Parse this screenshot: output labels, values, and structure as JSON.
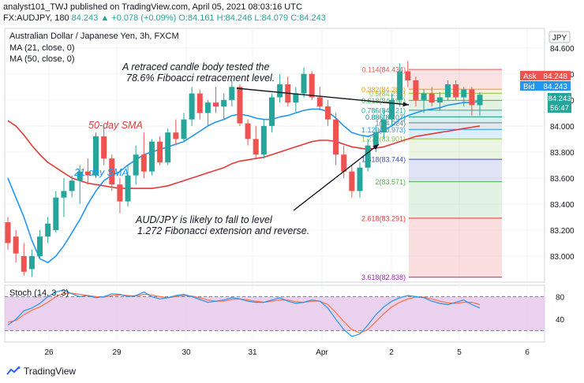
{
  "header": {
    "publisher_line": "analyst101_TWJ published on TradingView.com, April 05, 2021 08:03:16 UTC",
    "symbol_line": "FX:AUDJPY, 180",
    "last": "84.243",
    "change": "▲ +0.078 (+0.09%)",
    "open": "O:84.161",
    "high": "H:84.246",
    "low": "L:84.079",
    "close": "C:84.243"
  },
  "legend": {
    "pair_title": "Australian Dollar / Japanese Yen, 3h, FXCM",
    "ma21": "MA (21, close, 0)",
    "ma50": "MA (50, close, 0)",
    "stoch": "Stoch (14, 3, 3)"
  },
  "currency_label": "JPY",
  "annotations": {
    "top_line1": "A retraced candle body tested the",
    "top_line2": "78.6% Fiboacci retracement level.",
    "bottom_line1": "AUD/JPY is likely to fall to level",
    "bottom_line2": "1.272 Fibonacci extension and reverse.",
    "sma50": "50-day SMA",
    "sma21": "21-day SMA"
  },
  "price_tags": {
    "ask_label": "Ask",
    "ask_value": "84.248",
    "bid_label": "Bid",
    "bid_value": "84.243",
    "last_value": "84.243",
    "countdown": "56:47"
  },
  "brand": "TradingView",
  "colors": {
    "up": "#26a69a",
    "down": "#ef5350",
    "ma21": "#2196f3",
    "ma50": "#e53935",
    "stoch_k": "#2196f3",
    "stoch_d": "#ff7043",
    "stoch_band": "#e1bee7",
    "ask": "#ef5350",
    "bid": "#2196f3"
  },
  "chart_data": {
    "type": "candlestick",
    "y_ticks": [
      84.6,
      84.4,
      84.2,
      84.0,
      83.8,
      83.6,
      83.4,
      83.2,
      83.0
    ],
    "y_tick_labels": [
      "84.600",
      "84.400",
      "84.200",
      "84.000",
      "83.800",
      "83.600",
      "83.400",
      "83.200",
      "83.000"
    ],
    "ylim": [
      82.8,
      84.75
    ],
    "x_labels": [
      "26",
      "29",
      "30",
      "31",
      "Apr",
      "2",
      "5",
      "6"
    ],
    "candles": [
      [
        83.26,
        83.3,
        83.05,
        83.1
      ],
      [
        83.15,
        83.2,
        82.95,
        83.02
      ],
      [
        83.0,
        83.1,
        82.85,
        82.88
      ],
      [
        82.9,
        83.05,
        82.84,
        83.0
      ],
      [
        83.0,
        83.2,
        82.98,
        83.15
      ],
      [
        83.15,
        83.3,
        83.1,
        83.25
      ],
      [
        83.2,
        83.5,
        83.18,
        83.45
      ],
      [
        83.45,
        83.6,
        83.3,
        83.5
      ],
      [
        83.5,
        83.62,
        83.45,
        83.58
      ],
      [
        83.58,
        83.7,
        83.4,
        83.65
      ],
      [
        83.65,
        83.75,
        83.55,
        83.62
      ],
      [
        83.62,
        83.95,
        83.6,
        83.92
      ],
      [
        83.92,
        84.0,
        83.7,
        83.75
      ],
      [
        83.75,
        83.78,
        83.5,
        83.55
      ],
      [
        83.55,
        83.6,
        83.33,
        83.42
      ],
      [
        83.42,
        83.7,
        83.38,
        83.62
      ],
      [
        83.62,
        83.85,
        83.55,
        83.78
      ],
      [
        83.78,
        83.95,
        83.6,
        83.65
      ],
      [
        83.65,
        83.9,
        83.62,
        83.88
      ],
      [
        83.88,
        83.92,
        83.7,
        83.72
      ],
      [
        83.72,
        83.98,
        83.7,
        83.95
      ],
      [
        83.95,
        84.05,
        83.85,
        83.9
      ],
      [
        83.9,
        84.1,
        83.88,
        84.05
      ],
      [
        84.05,
        84.3,
        84.0,
        84.25
      ],
      [
        84.25,
        84.28,
        84.05,
        84.1
      ],
      [
        84.1,
        84.2,
        84.0,
        84.18
      ],
      [
        84.18,
        84.3,
        84.1,
        84.15
      ],
      [
        84.15,
        84.25,
        84.05,
        84.2
      ],
      [
        84.2,
        84.35,
        84.15,
        84.3
      ],
      [
        84.3,
        84.32,
        84.0,
        84.02
      ],
      [
        84.02,
        84.05,
        83.85,
        83.9
      ],
      [
        83.9,
        84.0,
        83.75,
        83.78
      ],
      [
        83.78,
        84.05,
        83.75,
        84.0
      ],
      [
        84.0,
        84.25,
        83.95,
        84.22
      ],
      [
        84.22,
        84.4,
        84.18,
        84.32
      ],
      [
        84.32,
        84.38,
        84.15,
        84.18
      ],
      [
        84.18,
        84.3,
        84.1,
        84.25
      ],
      [
        84.25,
        84.45,
        84.22,
        84.4
      ],
      [
        84.4,
        84.42,
        84.2,
        84.22
      ],
      [
        84.22,
        84.3,
        84.12,
        84.15
      ],
      [
        84.15,
        84.2,
        84.0,
        84.05
      ],
      [
        84.05,
        84.1,
        83.7,
        83.78
      ],
      [
        83.78,
        83.85,
        83.6,
        83.65
      ],
      [
        83.65,
        83.7,
        83.45,
        83.5
      ],
      [
        83.5,
        83.72,
        83.45,
        83.68
      ],
      [
        83.68,
        83.9,
        83.65,
        83.85
      ],
      [
        83.85,
        84.0,
        83.8,
        83.95
      ],
      [
        83.95,
        84.12,
        83.9,
        84.05
      ],
      [
        84.05,
        84.25,
        84.0,
        84.2
      ],
      [
        84.2,
        84.48,
        84.15,
        84.42
      ],
      [
        84.42,
        84.5,
        84.3,
        84.35
      ],
      [
        84.35,
        84.38,
        84.15,
        84.2
      ],
      [
        84.2,
        84.28,
        84.1,
        84.25
      ],
      [
        84.25,
        84.3,
        84.15,
        84.18
      ],
      [
        84.18,
        84.26,
        84.12,
        84.22
      ],
      [
        84.22,
        84.35,
        84.2,
        84.32
      ],
      [
        84.32,
        84.35,
        84.2,
        84.22
      ],
      [
        84.22,
        84.3,
        84.15,
        84.28
      ],
      [
        84.28,
        84.3,
        84.08,
        84.16
      ],
      [
        84.16,
        84.26,
        84.08,
        84.24
      ]
    ],
    "ma21": [
      83.6,
      83.45,
      83.3,
      83.12,
      82.98,
      82.95,
      83.0,
      83.08,
      83.18,
      83.28,
      83.4,
      83.5,
      83.58,
      83.62,
      83.65,
      83.7,
      83.74,
      83.78,
      83.8,
      83.82,
      83.84,
      83.86,
      83.88,
      83.92,
      83.96,
      84.0,
      84.03,
      84.05,
      84.08,
      84.09,
      84.08,
      84.06,
      84.05,
      84.05,
      84.07,
      84.08,
      84.1,
      84.12,
      84.13,
      84.13,
      84.11,
      84.06,
      84.0,
      83.95,
      83.93,
      83.92,
      83.94,
      83.97,
      84.0,
      84.05,
      84.08,
      84.1,
      84.12,
      84.13,
      84.14,
      84.16,
      84.17,
      84.18,
      84.18,
      84.19
    ],
    "ma50": [
      84.04,
      84.0,
      83.93,
      83.85,
      83.78,
      83.72,
      83.68,
      83.64,
      83.6,
      83.58,
      83.56,
      83.55,
      83.54,
      83.53,
      83.52,
      83.52,
      83.52,
      83.52,
      83.52,
      83.53,
      83.54,
      83.56,
      83.58,
      83.6,
      83.62,
      83.64,
      83.66,
      83.68,
      83.71,
      83.73,
      83.74,
      83.75,
      83.76,
      83.78,
      83.8,
      83.82,
      83.84,
      83.86,
      83.88,
      83.89,
      83.89,
      83.88,
      83.86,
      83.84,
      83.83,
      83.82,
      83.83,
      83.84,
      83.86,
      83.88,
      83.9,
      83.92,
      83.93,
      83.94,
      83.95,
      83.96,
      83.97,
      83.98,
      83.99,
      84.0
    ],
    "ma21_xrange_start": 0,
    "fib_levels": [
      {
        "ratio": "0.114",
        "price": "84.434",
        "color": "#ef5350"
      },
      {
        "ratio": "0.382",
        "price": "84.282",
        "color": "#ff9800"
      },
      {
        "ratio": "0.5",
        "price": "84.251",
        "color": "#8bc34a"
      },
      {
        "ratio": "0.618",
        "price": "84.197",
        "color": "#4caf50"
      },
      {
        "ratio": "0.786",
        "price": "84.121",
        "color": "#26a69a"
      },
      {
        "ratio": "0.886",
        "price": "84.07",
        "color": "#009688"
      },
      {
        "ratio": "1",
        "price": "84.024",
        "color": "#607d8b"
      },
      {
        "ratio": "1.129",
        "price": "83.973",
        "color": "#2196f3"
      },
      {
        "ratio": "1.272",
        "price": "83.901",
        "color": "#8bc34a"
      },
      {
        "ratio": "1.618",
        "price": "83.744",
        "color": "#3f51b5"
      },
      {
        "ratio": "2",
        "price": "83.571",
        "color": "#4caf50"
      },
      {
        "ratio": "2.618",
        "price": "83.291",
        "color": "#e53935"
      },
      {
        "ratio": "3.618",
        "price": "82.838",
        "color": "#9c27b0"
      }
    ],
    "stoch": {
      "ticks": [
        80,
        40
      ],
      "k": [
        30,
        40,
        55,
        60,
        68,
        80,
        88,
        92,
        85,
        80,
        82,
        78,
        80,
        85,
        84,
        80,
        82,
        88,
        80,
        76,
        78,
        82,
        84,
        80,
        75,
        70,
        72,
        74,
        78,
        76,
        72,
        70,
        70,
        74,
        78,
        72,
        68,
        70,
        74,
        72,
        60,
        40,
        22,
        10,
        14,
        30,
        48,
        62,
        72,
        78,
        82,
        80,
        78,
        72,
        68,
        66,
        70,
        74,
        66,
        60
      ],
      "d": [
        35,
        38,
        48,
        56,
        62,
        70,
        80,
        86,
        86,
        84,
        82,
        80,
        79,
        82,
        83,
        82,
        81,
        84,
        83,
        80,
        78,
        80,
        82,
        81,
        78,
        74,
        72,
        72,
        75,
        76,
        74,
        72,
        70,
        72,
        74,
        74,
        71,
        70,
        72,
        72,
        66,
        52,
        36,
        22,
        16,
        22,
        36,
        50,
        62,
        70,
        76,
        79,
        79,
        76,
        72,
        69,
        68,
        70,
        70,
        66
      ]
    }
  }
}
